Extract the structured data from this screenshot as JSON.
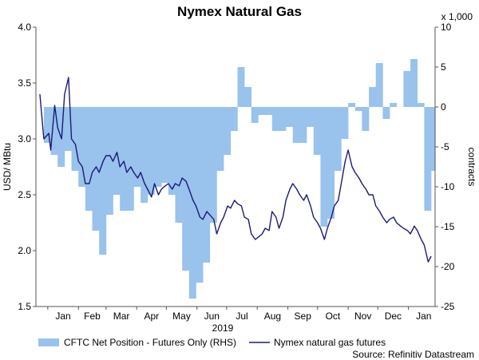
{
  "chart_data": {
    "type": "line",
    "title": "Nymex Natural Gas",
    "ylabel_left": "USD/ MBtu",
    "ylabel_right": "contracts",
    "right_axis_multiplier": "x 1,000",
    "year_label": "2019",
    "source": "Source: Refinitiv Datastream",
    "ylim_left": [
      1.5,
      4.0
    ],
    "ylim_right": [
      -25,
      10
    ],
    "yticks_left": [
      "1.5",
      "2.0",
      "2.5",
      "3.0",
      "3.5",
      "4.0"
    ],
    "yticks_right": [
      "-25",
      "-20",
      "-15",
      "-10",
      "-5",
      "0",
      "5",
      "10"
    ],
    "month_labels": [
      "Jan",
      "Feb",
      "Mar",
      "Apr",
      "May",
      "Jun",
      "Jul",
      "Aug",
      "Sep",
      "Oct",
      "Nov",
      "Dec",
      "Jan"
    ],
    "grid": false,
    "legend": "bottom",
    "series": [
      {
        "name": "CFTC Net Position - Futures Only (RHS)",
        "type": "area",
        "axis": "right",
        "color": "#99c2ec",
        "x": [
          "2018-12-28",
          "2019-01-04",
          "2019-01-11",
          "2019-01-18",
          "2019-01-25",
          "2019-02-01",
          "2019-02-08",
          "2019-02-15",
          "2019-02-22",
          "2019-03-01",
          "2019-03-08",
          "2019-03-15",
          "2019-03-22",
          "2019-03-29",
          "2019-04-05",
          "2019-04-12",
          "2019-04-19",
          "2019-04-26",
          "2019-05-03",
          "2019-05-10",
          "2019-05-17",
          "2019-05-24",
          "2019-05-31",
          "2019-06-07",
          "2019-06-14",
          "2019-06-21",
          "2019-06-28",
          "2019-07-05",
          "2019-07-12",
          "2019-07-19",
          "2019-07-26",
          "2019-08-02",
          "2019-08-09",
          "2019-08-16",
          "2019-08-23",
          "2019-08-30",
          "2019-09-06",
          "2019-09-13",
          "2019-09-20",
          "2019-09-27",
          "2019-10-04",
          "2019-10-11",
          "2019-10-18",
          "2019-10-25",
          "2019-11-01",
          "2019-11-08",
          "2019-11-15",
          "2019-11-22",
          "2019-11-29",
          "2019-12-06",
          "2019-12-13",
          "2019-12-20",
          "2019-12-27",
          "2020-01-03",
          "2020-01-10",
          "2020-01-17",
          "2020-01-24"
        ],
        "values": [
          -4.5,
          -6,
          -7.5,
          -5.5,
          -8,
          -10,
          -13,
          -15.5,
          -18.5,
          -13.5,
          -11,
          -13,
          -13,
          -10,
          -12,
          -11,
          -10,
          -9.5,
          -11,
          -14.5,
          -20.5,
          -24,
          -22,
          -19.5,
          -14.5,
          -8,
          -6,
          -3,
          5,
          2.5,
          -2,
          -1,
          -1,
          -3,
          -3,
          -2.5,
          -4.5,
          -4.5,
          -2.5,
          -6,
          -15,
          -14,
          -8,
          -4,
          0.5,
          -0.5,
          -3,
          2.5,
          5.5,
          -1.5,
          0.5,
          0,
          4.5,
          6,
          0.5,
          -13,
          -8
        ]
      },
      {
        "name": "Nymex natural gas futures",
        "type": "line",
        "axis": "left",
        "color": "#1a1a7a",
        "x": [
          "2018-12-24",
          "2018-12-28",
          "2019-01-02",
          "2019-01-04",
          "2019-01-08",
          "2019-01-11",
          "2019-01-15",
          "2019-01-18",
          "2019-01-22",
          "2019-01-25",
          "2019-01-29",
          "2019-02-01",
          "2019-02-05",
          "2019-02-08",
          "2019-02-12",
          "2019-02-15",
          "2019-02-19",
          "2019-02-22",
          "2019-02-26",
          "2019-03-01",
          "2019-03-05",
          "2019-03-08",
          "2019-03-12",
          "2019-03-15",
          "2019-03-19",
          "2019-03-22",
          "2019-03-26",
          "2019-03-29",
          "2019-04-02",
          "2019-04-05",
          "2019-04-09",
          "2019-04-12",
          "2019-04-16",
          "2019-04-19",
          "2019-04-23",
          "2019-04-26",
          "2019-04-30",
          "2019-05-03",
          "2019-05-07",
          "2019-05-10",
          "2019-05-14",
          "2019-05-17",
          "2019-05-21",
          "2019-05-24",
          "2019-05-28",
          "2019-05-31",
          "2019-06-04",
          "2019-06-07",
          "2019-06-11",
          "2019-06-14",
          "2019-06-18",
          "2019-06-21",
          "2019-06-25",
          "2019-06-28",
          "2019-07-02",
          "2019-07-05",
          "2019-07-09",
          "2019-07-12",
          "2019-07-16",
          "2019-07-19",
          "2019-07-23",
          "2019-07-26",
          "2019-07-30",
          "2019-08-02",
          "2019-08-06",
          "2019-08-09",
          "2019-08-13",
          "2019-08-16",
          "2019-08-20",
          "2019-08-23",
          "2019-08-27",
          "2019-08-30",
          "2019-09-03",
          "2019-09-06",
          "2019-09-10",
          "2019-09-13",
          "2019-09-17",
          "2019-09-20",
          "2019-09-24",
          "2019-09-27",
          "2019-10-01",
          "2019-10-04",
          "2019-10-08",
          "2019-10-11",
          "2019-10-15",
          "2019-10-18",
          "2019-10-22",
          "2019-10-25",
          "2019-10-29",
          "2019-11-01",
          "2019-11-05",
          "2019-11-08",
          "2019-11-12",
          "2019-11-15",
          "2019-11-19",
          "2019-11-22",
          "2019-11-26",
          "2019-11-29",
          "2019-12-03",
          "2019-12-06",
          "2019-12-10",
          "2019-12-13",
          "2019-12-17",
          "2019-12-20",
          "2019-12-24",
          "2019-12-27",
          "2019-12-31",
          "2020-01-03",
          "2020-01-07",
          "2020-01-10",
          "2020-01-14",
          "2020-01-17",
          "2020-01-21",
          "2020-01-24"
        ],
        "values": [
          3.4,
          3.0,
          3.05,
          2.9,
          3.3,
          3.1,
          3.0,
          3.4,
          3.55,
          3.0,
          2.95,
          2.8,
          2.75,
          2.6,
          2.6,
          2.7,
          2.75,
          2.7,
          2.8,
          2.85,
          2.85,
          2.8,
          2.88,
          2.75,
          2.8,
          2.7,
          2.75,
          2.7,
          2.65,
          2.7,
          2.6,
          2.55,
          2.48,
          2.6,
          2.5,
          2.55,
          2.58,
          2.6,
          2.55,
          2.6,
          2.58,
          2.65,
          2.62,
          2.55,
          2.45,
          2.4,
          2.3,
          2.28,
          2.35,
          2.32,
          2.28,
          2.15,
          2.25,
          2.3,
          2.4,
          2.38,
          2.45,
          2.42,
          2.4,
          2.3,
          2.28,
          2.15,
          2.1,
          2.12,
          2.15,
          2.2,
          2.18,
          2.35,
          2.3,
          2.2,
          2.3,
          2.45,
          2.55,
          2.6,
          2.55,
          2.5,
          2.45,
          2.5,
          2.4,
          2.3,
          2.25,
          2.2,
          2.1,
          2.2,
          2.3,
          2.4,
          2.45,
          2.6,
          2.8,
          2.9,
          2.75,
          2.7,
          2.65,
          2.6,
          2.55,
          2.5,
          2.5,
          2.4,
          2.35,
          2.3,
          2.25,
          2.28,
          2.3,
          2.25,
          2.22,
          2.2,
          2.18,
          2.15,
          2.22,
          2.18,
          2.1,
          2.05,
          1.9,
          1.95
        ]
      }
    ]
  }
}
